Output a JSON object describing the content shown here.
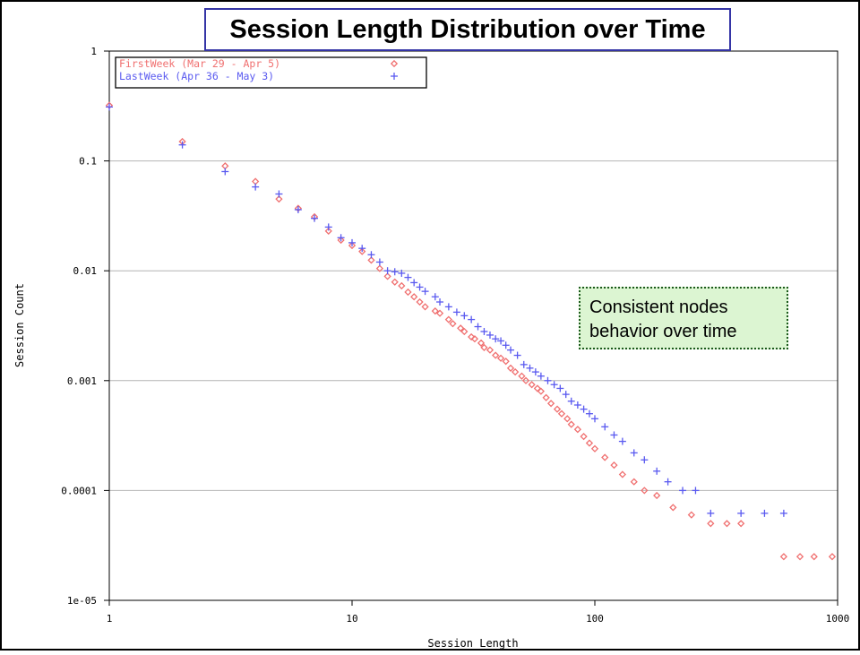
{
  "chart_data": {
    "type": "scatter",
    "title": "Session Length Distribution over Time",
    "xlabel": "Session Length",
    "ylabel": "Session Count",
    "xscale": "log",
    "yscale": "log",
    "xlim": [
      1,
      1000
    ],
    "ylim": [
      1e-05,
      1
    ],
    "x_ticks": [
      "1",
      "10",
      "100",
      "1000"
    ],
    "y_ticks": [
      "1",
      "0.1",
      "0.01",
      "0.001",
      "0.0001",
      "1e-05"
    ],
    "grid": "horizontal",
    "legend_position": "top-left",
    "annotation": [
      "Consistent nodes",
      "behavior over time"
    ],
    "series": [
      {
        "name": "FirstWeek (Mar 29 - Apr 5)",
        "marker": "diamond",
        "color": "#f07070",
        "points": [
          [
            1,
            0.32
          ],
          [
            2,
            0.15
          ],
          [
            3,
            0.09
          ],
          [
            4,
            0.065
          ],
          [
            5,
            0.045
          ],
          [
            6,
            0.037
          ],
          [
            7,
            0.031
          ],
          [
            8,
            0.023
          ],
          [
            9,
            0.019
          ],
          [
            10,
            0.017
          ],
          [
            11,
            0.015
          ],
          [
            12,
            0.0125
          ],
          [
            13,
            0.0105
          ],
          [
            14,
            0.0089
          ],
          [
            15,
            0.0079
          ],
          [
            16,
            0.0073
          ],
          [
            17,
            0.0064
          ],
          [
            18,
            0.0058
          ],
          [
            19,
            0.0052
          ],
          [
            20,
            0.0047
          ],
          [
            22,
            0.0043
          ],
          [
            23,
            0.0041
          ],
          [
            25,
            0.0036
          ],
          [
            26,
            0.0033
          ],
          [
            28,
            0.003
          ],
          [
            29,
            0.0028
          ],
          [
            31,
            0.0025
          ],
          [
            32,
            0.0024
          ],
          [
            34,
            0.0022
          ],
          [
            35,
            0.002
          ],
          [
            37,
            0.0019
          ],
          [
            39,
            0.0017
          ],
          [
            41,
            0.0016
          ],
          [
            43,
            0.0015
          ],
          [
            45,
            0.0013
          ],
          [
            47,
            0.0012
          ],
          [
            50,
            0.0011
          ],
          [
            52,
            0.001
          ],
          [
            55,
            0.00092
          ],
          [
            58,
            0.00085
          ],
          [
            60,
            0.0008
          ],
          [
            63,
            0.0007
          ],
          [
            66,
            0.00062
          ],
          [
            70,
            0.00055
          ],
          [
            73,
            0.0005
          ],
          [
            77,
            0.00045
          ],
          [
            80,
            0.0004
          ],
          [
            85,
            0.00036
          ],
          [
            90,
            0.00031
          ],
          [
            95,
            0.00027
          ],
          [
            100,
            0.00024
          ],
          [
            110,
            0.0002
          ],
          [
            120,
            0.00017
          ],
          [
            130,
            0.00014
          ],
          [
            145,
            0.00012
          ],
          [
            160,
            0.0001
          ],
          [
            180,
            9e-05
          ],
          [
            210,
            7e-05
          ],
          [
            250,
            6e-05
          ],
          [
            300,
            5e-05
          ],
          [
            350,
            5e-05
          ],
          [
            400,
            5e-05
          ],
          [
            600,
            2.5e-05
          ],
          [
            700,
            2.5e-05
          ],
          [
            800,
            2.5e-05
          ],
          [
            950,
            2.5e-05
          ]
        ]
      },
      {
        "name": "LastWeek (Apr 36 - May 3)",
        "marker": "plus",
        "color": "#5a5af0",
        "points": [
          [
            1,
            0.31
          ],
          [
            2,
            0.14
          ],
          [
            3,
            0.08
          ],
          [
            4,
            0.058
          ],
          [
            5,
            0.05
          ],
          [
            6,
            0.036
          ],
          [
            7,
            0.03
          ],
          [
            8,
            0.025
          ],
          [
            9,
            0.02
          ],
          [
            10,
            0.018
          ],
          [
            11,
            0.016
          ],
          [
            12,
            0.014
          ],
          [
            13,
            0.012
          ],
          [
            14,
            0.01
          ],
          [
            15,
            0.0098
          ],
          [
            16,
            0.0095
          ],
          [
            17,
            0.0087
          ],
          [
            18,
            0.0078
          ],
          [
            19,
            0.0071
          ],
          [
            20,
            0.0065
          ],
          [
            22,
            0.0058
          ],
          [
            23,
            0.0052
          ],
          [
            25,
            0.0047
          ],
          [
            27,
            0.0042
          ],
          [
            29,
            0.0039
          ],
          [
            31,
            0.0036
          ],
          [
            33,
            0.0031
          ],
          [
            35,
            0.0028
          ],
          [
            37,
            0.0026
          ],
          [
            39,
            0.0024
          ],
          [
            41,
            0.0023
          ],
          [
            43,
            0.0021
          ],
          [
            45,
            0.0019
          ],
          [
            48,
            0.0017
          ],
          [
            51,
            0.0014
          ],
          [
            54,
            0.0013
          ],
          [
            57,
            0.0012
          ],
          [
            60,
            0.0011
          ],
          [
            64,
            0.001
          ],
          [
            68,
            0.00092
          ],
          [
            72,
            0.00085
          ],
          [
            76,
            0.00075
          ],
          [
            80,
            0.00065
          ],
          [
            85,
            0.0006
          ],
          [
            90,
            0.00055
          ],
          [
            95,
            0.0005
          ],
          [
            100,
            0.00045
          ],
          [
            110,
            0.00038
          ],
          [
            120,
            0.00032
          ],
          [
            130,
            0.00028
          ],
          [
            145,
            0.00022
          ],
          [
            160,
            0.00019
          ],
          [
            180,
            0.00015
          ],
          [
            200,
            0.00012
          ],
          [
            230,
            0.0001
          ],
          [
            260,
            0.0001
          ],
          [
            300,
            6.2e-05
          ],
          [
            400,
            6.2e-05
          ],
          [
            500,
            6.2e-05
          ],
          [
            600,
            6.2e-05
          ]
        ]
      }
    ]
  }
}
